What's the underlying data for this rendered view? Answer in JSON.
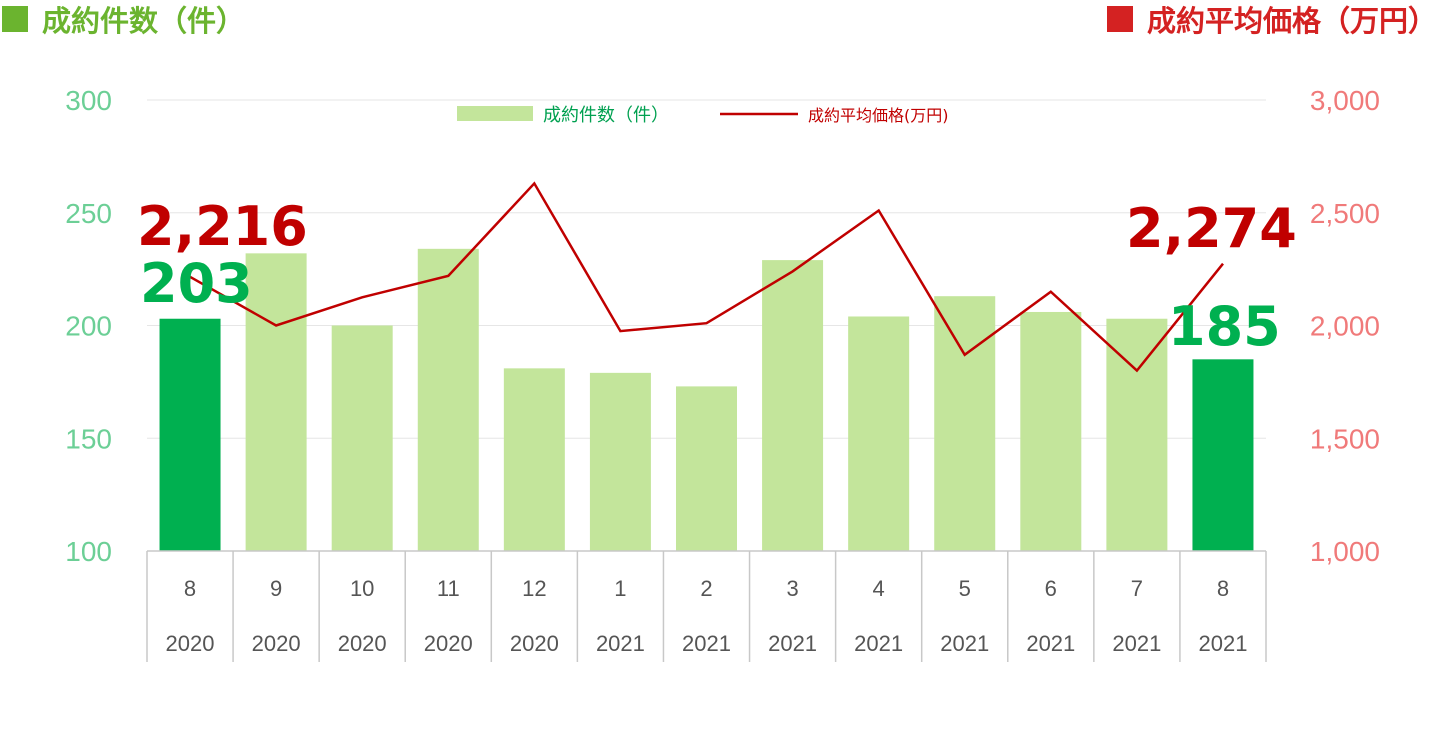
{
  "header": {
    "left_title": "成約件数（件）",
    "right_title": "成約平均価格（万円）"
  },
  "colors": {
    "bar_light": "#c3e59b",
    "bar_highlight": "#00b050",
    "line": "#c00000",
    "left_axis_text": "#6ccf96",
    "right_axis_text": "#f07a7a",
    "left_title": "#6bb42f",
    "right_title": "#d42222",
    "grid": "#e6e6e6",
    "table_border": "#c8c8c8"
  },
  "chart_data": {
    "type": "bar",
    "categories": [
      {
        "month": "8",
        "year": "2020"
      },
      {
        "month": "9",
        "year": "2020"
      },
      {
        "month": "10",
        "year": "2020"
      },
      {
        "month": "11",
        "year": "2020"
      },
      {
        "month": "12",
        "year": "2020"
      },
      {
        "month": "1",
        "year": "2021"
      },
      {
        "month": "2",
        "year": "2021"
      },
      {
        "month": "3",
        "year": "2021"
      },
      {
        "month": "4",
        "year": "2021"
      },
      {
        "month": "5",
        "year": "2021"
      },
      {
        "month": "6",
        "year": "2021"
      },
      {
        "month": "7",
        "year": "2021"
      },
      {
        "month": "8",
        "year": "2021"
      }
    ],
    "series": [
      {
        "name": "成約件数（件）",
        "type": "bar",
        "axis": "left",
        "values": [
          203,
          232,
          200,
          234,
          181,
          179,
          173,
          229,
          204,
          213,
          206,
          203,
          185
        ],
        "highlight_indices": [
          0,
          12
        ]
      },
      {
        "name": "成約平均価格(万円)",
        "type": "line",
        "axis": "right",
        "values": [
          2216,
          2000,
          2125,
          2220,
          2630,
          1975,
          2010,
          2240,
          2510,
          1870,
          2150,
          1800,
          2274
        ]
      }
    ],
    "left_axis": {
      "min": 100,
      "max": 300,
      "ticks": [
        "100",
        "150",
        "200",
        "250",
        "300"
      ]
    },
    "right_axis": {
      "min": 1000,
      "max": 3000,
      "ticks": [
        "1,000",
        "1,500",
        "2,000",
        "2,500",
        "3,000"
      ]
    },
    "grid": true,
    "legend_position": "top-center",
    "callouts": {
      "first_count": "203",
      "last_count": "185",
      "first_price": "2,216",
      "last_price": "2,274"
    }
  }
}
